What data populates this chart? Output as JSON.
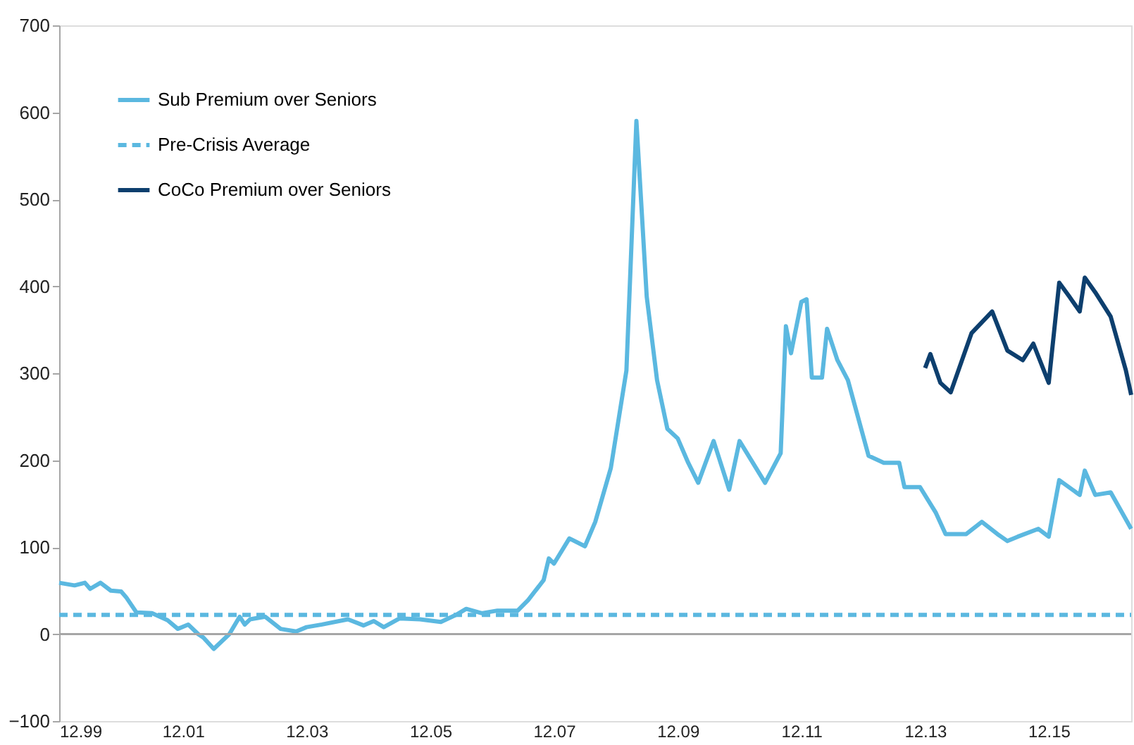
{
  "chart_data": {
    "type": "line",
    "xlim": [
      "1999-12",
      "2017-04"
    ],
    "xticks": [
      {
        "value": "1999-12",
        "label": "12.99"
      },
      {
        "value": "2001-12",
        "label": "12.01"
      },
      {
        "value": "2003-12",
        "label": "12.03"
      },
      {
        "value": "2005-12",
        "label": "12.05"
      },
      {
        "value": "2007-12",
        "label": "12.07"
      },
      {
        "value": "2009-12",
        "label": "12.09"
      },
      {
        "value": "2011-12",
        "label": "12.11"
      },
      {
        "value": "2013-12",
        "label": "12.13"
      },
      {
        "value": "2015-12",
        "label": "12.15"
      }
    ],
    "ylim": [
      -100,
      700
    ],
    "yticks": [
      -100,
      0,
      100,
      200,
      300,
      400,
      500,
      600,
      700
    ],
    "grid": false,
    "legend": "top left",
    "ref_lines": [
      {
        "axis": "y",
        "value": 0,
        "color": "#a6a6a6",
        "line_style": "solid"
      }
    ],
    "series": [
      {
        "name": "Sub Premium over Seniors",
        "color": "#5bb8e0",
        "line_style": "solid",
        "x": [
          "1999-12",
          "2000-03",
          "2000-05",
          "2000-06",
          "2000-08",
          "2000-10",
          "2000-12",
          "2001-01",
          "2001-03",
          "2001-06",
          "2001-09",
          "2001-11",
          "2002-01",
          "2002-03",
          "2002-04",
          "2002-06",
          "2002-09",
          "2002-11",
          "2002-12",
          "2003-01",
          "2003-04",
          "2003-07",
          "2003-10",
          "2003-12",
          "2004-03",
          "2004-08",
          "2004-11",
          "2005-01",
          "2005-03",
          "2005-06",
          "2005-10",
          "2006-02",
          "2006-05",
          "2006-07",
          "2006-10",
          "2007-01",
          "2007-05",
          "2007-07",
          "2007-10",
          "2007-11",
          "2007-12",
          "2008-03",
          "2008-06",
          "2008-08",
          "2008-11",
          "2009-02",
          "2009-04",
          "2009-06",
          "2009-08",
          "2009-10",
          "2009-12",
          "2010-02",
          "2010-04",
          "2010-07",
          "2010-10",
          "2010-12",
          "2011-05",
          "2011-08",
          "2011-09",
          "2011-10",
          "2011-12",
          "2012-01",
          "2012-02",
          "2012-04",
          "2012-05",
          "2012-07",
          "2012-09",
          "2013-01",
          "2013-04",
          "2013-07",
          "2013-08",
          "2013-11",
          "2014-02",
          "2014-04",
          "2014-08",
          "2014-11",
          "2015-02",
          "2015-04",
          "2015-06",
          "2015-10",
          "2015-12",
          "2016-02",
          "2016-06",
          "2016-07",
          "2016-09",
          "2016-12",
          "2017-04"
        ],
        "values": [
          59,
          56,
          59,
          52,
          59,
          50,
          49,
          42,
          25,
          24,
          16,
          6,
          11,
          0,
          -4,
          -17,
          0,
          20,
          11,
          17,
          20,
          6,
          3,
          8,
          11,
          17,
          10,
          15,
          8,
          18,
          17,
          14,
          22,
          29,
          24,
          27,
          27,
          39,
          62,
          87,
          81,
          110,
          101,
          129,
          191,
          303,
          590,
          388,
          292,
          236,
          225,
          197,
          174,
          222,
          166,
          222,
          174,
          208,
          354,
          323,
          382,
          385,
          295,
          295,
          351,
          315,
          292,
          205,
          197,
          197,
          169,
          169,
          140,
          115,
          115,
          129,
          115,
          107,
          112,
          121,
          112,
          177,
          160,
          188,
          160,
          163,
          121
        ]
      },
      {
        "name": "Pre-Crisis Average",
        "color": "#5bb8e0",
        "line_style": "dashed",
        "x": [
          "1999-12",
          "2017-04"
        ],
        "values": [
          22,
          22
        ]
      },
      {
        "name": "CoCo Premium over Seniors",
        "color": "#0d3f6e",
        "line_style": "solid",
        "x": [
          "2013-12",
          "2014-01",
          "2014-03",
          "2014-05",
          "2014-09",
          "2015-01",
          "2015-04",
          "2015-07",
          "2015-09",
          "2015-12",
          "2016-02",
          "2016-04",
          "2016-06",
          "2016-07",
          "2016-09",
          "2016-12",
          "2017-03",
          "2017-04"
        ],
        "values": [
          306,
          322,
          289,
          278,
          346,
          371,
          326,
          315,
          334,
          289,
          404,
          388,
          371,
          410,
          393,
          365,
          303,
          275
        ]
      }
    ]
  }
}
